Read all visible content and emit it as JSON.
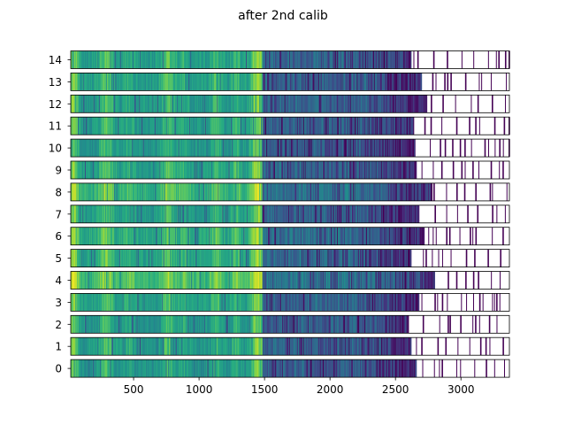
{
  "chart_data": {
    "type": "heatmap",
    "title": "after 2nd calib",
    "xlabel": "",
    "ylabel": "",
    "xlim": [
      20,
      3370
    ],
    "x_ticks": [
      500,
      1000,
      1500,
      2000,
      2500,
      3000
    ],
    "y_ticks": [
      0,
      1,
      2,
      3,
      4,
      5,
      6,
      7,
      8,
      9,
      10,
      11,
      12,
      13,
      14
    ],
    "colormap": "viridis",
    "grid": false,
    "legend": "none",
    "rows": [
      {
        "label": "0",
        "data_end": 2660,
        "brightness": 0.55
      },
      {
        "label": "1",
        "data_end": 2620,
        "brightness": 0.58
      },
      {
        "label": "2",
        "data_end": 2600,
        "brightness": 0.56
      },
      {
        "label": "3",
        "data_end": 2680,
        "brightness": 0.6
      },
      {
        "label": "4",
        "data_end": 2800,
        "brightness": 0.72
      },
      {
        "label": "5",
        "data_end": 2620,
        "brightness": 0.62
      },
      {
        "label": "6",
        "data_end": 2720,
        "brightness": 0.64
      },
      {
        "label": "7",
        "data_end": 2680,
        "brightness": 0.58
      },
      {
        "label": "8",
        "data_end": 2780,
        "brightness": 0.68
      },
      {
        "label": "9",
        "data_end": 2660,
        "brightness": 0.6
      },
      {
        "label": "10",
        "data_end": 2650,
        "brightness": 0.56
      },
      {
        "label": "11",
        "data_end": 2640,
        "brightness": 0.58
      },
      {
        "label": "12",
        "data_end": 2740,
        "brightness": 0.58
      },
      {
        "label": "13",
        "data_end": 2700,
        "brightness": 0.6
      },
      {
        "label": "14",
        "data_end": 2620,
        "brightness": 0.6
      }
    ]
  }
}
